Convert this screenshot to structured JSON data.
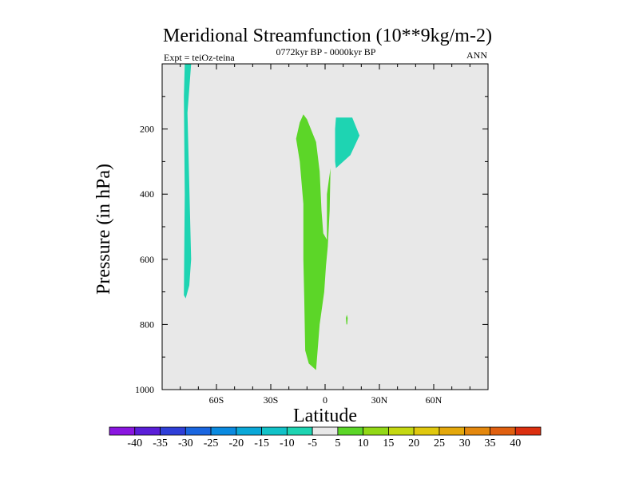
{
  "chart_data": {
    "type": "contour",
    "title": "Meridional Streamfunction (10**9kg/m-2)",
    "experiment": "Expt = teiOz-teina",
    "time_range": "0772kyr BP - 0000kyr BP",
    "season": "ANN",
    "xlabel": "Latitude",
    "ylabel": "Pressure (in hPa)",
    "xlim": [
      -90,
      90
    ],
    "ylim": [
      1000,
      0
    ],
    "x_ticks": [
      -60,
      -30,
      0,
      30,
      60
    ],
    "x_tick_labels": [
      "60S",
      "30S",
      "0",
      "30N",
      "60N"
    ],
    "y_ticks": [
      200,
      400,
      600,
      800,
      1000
    ],
    "y_tick_labels": [
      "200",
      "400",
      "600",
      "800",
      "1000"
    ],
    "colorbar": {
      "boundaries": [
        "-40",
        "-35",
        "-30",
        "-25",
        "-20",
        "-15",
        "-10",
        "-5",
        "5",
        "10",
        "15",
        "20",
        "25",
        "30",
        "35",
        "40"
      ],
      "colors": [
        "#8a16e0",
        "#5a1ed8",
        "#2f3fd8",
        "#1a66e0",
        "#0a8ae0",
        "#0aa8d8",
        "#12c2c8",
        "#1ed4b2",
        "#e8e8e8",
        "#5cd628",
        "#92d816",
        "#c4d812",
        "#e0c80e",
        "#e4a80c",
        "#e4880e",
        "#e06010",
        "#dc3010"
      ]
    },
    "regions": [
      {
        "name": "negative-high-lat-south",
        "level": "-10 to -5",
        "color": "#1ed4b2",
        "outline": [
          [
            -77.5,
            0
          ],
          [
            -74,
            0
          ],
          [
            -76,
            150
          ],
          [
            -74,
            600
          ],
          [
            -75,
            680
          ],
          [
            -77,
            720
          ],
          [
            -78,
            710
          ],
          [
            -77.5,
            400
          ],
          [
            -78,
            100
          ]
        ]
      },
      {
        "name": "positive-equatorial",
        "level": "5 to 10",
        "color": "#5cd628",
        "outline": [
          [
            -12,
            155
          ],
          [
            -10,
            170
          ],
          [
            -5,
            240
          ],
          [
            -3,
            330
          ],
          [
            -2,
            450
          ],
          [
            -1,
            520
          ],
          [
            1,
            540
          ],
          [
            1,
            400
          ],
          [
            2,
            360
          ],
          [
            3,
            320
          ],
          [
            2.5,
            450
          ],
          [
            1.5,
            560
          ],
          [
            0.5,
            620
          ],
          [
            -0.5,
            700
          ],
          [
            -3,
            800
          ],
          [
            -5,
            940
          ],
          [
            -9,
            920
          ],
          [
            -11,
            880
          ],
          [
            -11.5,
            720
          ],
          [
            -12,
            600
          ],
          [
            -12,
            430
          ],
          [
            -14,
            300
          ],
          [
            -16,
            230
          ],
          [
            -14,
            180
          ]
        ]
      },
      {
        "name": "negative-northern-tropics",
        "level": "-10 to -5",
        "color": "#1ed4b2",
        "outline": [
          [
            6,
            165
          ],
          [
            15,
            165
          ],
          [
            19,
            220
          ],
          [
            14,
            280
          ],
          [
            10,
            300
          ],
          [
            6,
            320
          ],
          [
            5.5,
            300
          ],
          [
            5.5,
            200
          ]
        ]
      },
      {
        "name": "positive-small-spot",
        "level": "5 to 10",
        "color": "#5cd628",
        "outline": [
          [
            11.5,
            780
          ],
          [
            12,
            770
          ],
          [
            12.5,
            780
          ],
          [
            12.2,
            800
          ],
          [
            11.8,
            800
          ]
        ]
      }
    ]
  }
}
